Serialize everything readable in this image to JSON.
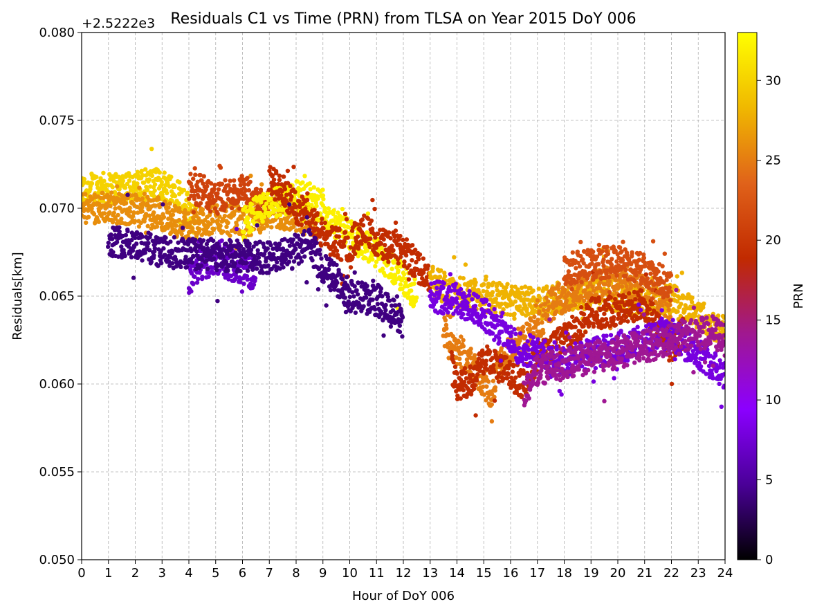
{
  "chart_data": {
    "type": "scatter",
    "title": "Residuals C1 vs Time (PRN) from TLSA on Year 2015 DoY 006",
    "xlabel": "Hour of DoY 006",
    "ylabel": "Residuals[km]",
    "offset_text": "+2.5222e3",
    "xlim": [
      0,
      24
    ],
    "ylim": [
      0.05,
      0.08
    ],
    "x_ticks": [
      "0",
      "1",
      "2",
      "3",
      "4",
      "5",
      "6",
      "7",
      "8",
      "9",
      "10",
      "11",
      "12",
      "13",
      "14",
      "15",
      "16",
      "17",
      "18",
      "19",
      "20",
      "21",
      "22",
      "23",
      "24"
    ],
    "y_ticks": [
      "0.050",
      "0.055",
      "0.060",
      "0.065",
      "0.070",
      "0.075",
      "0.080"
    ],
    "grid": true,
    "colorbar": {
      "label": "PRN",
      "range": [
        0,
        33
      ],
      "ticks": [
        "0",
        "5",
        "10",
        "15",
        "20",
        "25",
        "30"
      ],
      "colormap": "gnuplot",
      "stops": [
        "#000000",
        "#4a0098",
        "#8b00ff",
        "#a01890",
        "#c12a00",
        "#e0621a",
        "#f0b800",
        "#ffff00"
      ]
    },
    "series": [
      {
        "prn": 30,
        "segments": [
          [
            0,
            0.071
          ],
          [
            0.5,
            0.0712
          ],
          [
            1,
            0.0711
          ],
          [
            1.5,
            0.0713
          ],
          [
            2,
            0.0712
          ],
          [
            2.5,
            0.0714
          ],
          [
            3,
            0.0713
          ],
          [
            3.5,
            0.0711
          ],
          [
            4,
            0.07
          ],
          [
            4.3,
            0.069
          ]
        ]
      },
      {
        "prn": 26,
        "segments": [
          [
            0,
            0.07
          ],
          [
            1,
            0.0701
          ],
          [
            2,
            0.0699
          ],
          [
            3,
            0.0696
          ],
          [
            4,
            0.069
          ],
          [
            5,
            0.0695
          ],
          [
            6,
            0.0692
          ],
          [
            7,
            0.0697
          ],
          [
            8,
            0.0696
          ],
          [
            8.8,
            0.069
          ]
        ]
      },
      {
        "prn": 21,
        "segments": [
          [
            4,
            0.0712
          ],
          [
            4.5,
            0.071
          ],
          [
            5,
            0.0705
          ],
          [
            5.5,
            0.0708
          ],
          [
            6,
            0.071
          ],
          [
            6.5,
            0.0705
          ],
          [
            7,
            0.07
          ]
        ]
      },
      {
        "prn": 32,
        "segments": [
          [
            6,
            0.069
          ],
          [
            6.5,
            0.0698
          ],
          [
            7,
            0.0702
          ],
          [
            7.5,
            0.0705
          ],
          [
            8,
            0.0708
          ],
          [
            8.5,
            0.0706
          ],
          [
            9,
            0.07
          ],
          [
            9.5,
            0.069
          ],
          [
            10,
            0.0685
          ],
          [
            10.5,
            0.068
          ],
          [
            11,
            0.0675
          ],
          [
            11.5,
            0.0668
          ],
          [
            12,
            0.066
          ],
          [
            12.5,
            0.065
          ]
        ]
      },
      {
        "prn": 7,
        "segments": [
          [
            4,
            0.066
          ],
          [
            4.5,
            0.0668
          ],
          [
            5,
            0.0672
          ],
          [
            5.5,
            0.0668
          ],
          [
            6,
            0.0665
          ],
          [
            6.5,
            0.0662
          ]
        ]
      },
      {
        "prn": 19,
        "segments": [
          [
            7,
            0.0715
          ],
          [
            7.5,
            0.071
          ],
          [
            8,
            0.07
          ],
          [
            8.5,
            0.0695
          ],
          [
            9,
            0.0685
          ],
          [
            9.5,
            0.068
          ],
          [
            10,
            0.0678
          ],
          [
            10.5,
            0.069
          ],
          [
            11,
            0.068
          ],
          [
            11.5,
            0.0678
          ],
          [
            12,
            0.0675
          ],
          [
            12.5,
            0.0668
          ],
          [
            13,
            0.066
          ]
        ]
      },
      {
        "prn": 4,
        "segments": [
          [
            1,
            0.0682
          ],
          [
            2,
            0.068
          ],
          [
            3,
            0.0675
          ],
          [
            7,
            0.0672
          ],
          [
            8,
            0.0675
          ],
          [
            8.5,
            0.068
          ],
          [
            9,
            0.0665
          ],
          [
            9.5,
            0.066
          ],
          [
            10,
            0.065
          ],
          [
            11,
            0.0648
          ],
          [
            12,
            0.0635
          ]
        ]
      },
      {
        "prn": 28,
        "segments": [
          [
            13,
            0.066
          ],
          [
            13.5,
            0.0655
          ],
          [
            14,
            0.0652
          ],
          [
            15,
            0.065
          ],
          [
            16,
            0.0648
          ],
          [
            17,
            0.0645
          ],
          [
            18,
            0.065
          ],
          [
            19,
            0.0652
          ],
          [
            20,
            0.065
          ],
          [
            21,
            0.0645
          ],
          [
            22,
            0.0648
          ],
          [
            23,
            0.064
          ],
          [
            24,
            0.063
          ]
        ]
      },
      {
        "prn": 25,
        "segments": [
          [
            13.5,
            0.063
          ],
          [
            14,
            0.062
          ],
          [
            14.5,
            0.0612
          ],
          [
            15,
            0.06
          ],
          [
            15.3,
            0.0595
          ],
          [
            15.5,
            0.0608
          ],
          [
            16,
            0.062
          ],
          [
            17,
            0.0632
          ],
          [
            17.5,
            0.0645
          ],
          [
            18,
            0.065
          ],
          [
            19,
            0.0655
          ],
          [
            20,
            0.066
          ],
          [
            21,
            0.0655
          ],
          [
            22,
            0.064
          ]
        ]
      },
      {
        "prn": 19,
        "segments": [
          [
            13.8,
            0.061
          ],
          [
            14,
            0.06
          ],
          [
            14.5,
            0.0602
          ],
          [
            15,
            0.0615
          ],
          [
            16.5,
            0.06
          ],
          [
            17,
            0.0615
          ],
          [
            18,
            0.0625
          ],
          [
            19,
            0.064
          ],
          [
            20,
            0.0642
          ],
          [
            21,
            0.0645
          ],
          [
            22,
            0.062
          ],
          [
            22.5,
            0.063
          ]
        ]
      },
      {
        "prn": 8,
        "segments": [
          [
            13,
            0.065
          ],
          [
            14,
            0.0648
          ],
          [
            15,
            0.064
          ],
          [
            16,
            0.0625
          ],
          [
            16.5,
            0.0618
          ],
          [
            17,
            0.062
          ],
          [
            17.5,
            0.0612
          ],
          [
            22,
            0.0628
          ],
          [
            23,
            0.0618
          ],
          [
            23.5,
            0.0612
          ],
          [
            24,
            0.0605
          ]
        ]
      },
      {
        "prn": 14,
        "segments": [
          [
            16.5,
            0.0595
          ],
          [
            17,
            0.0608
          ],
          [
            23.5,
            0.063
          ],
          [
            24,
            0.0625
          ]
        ]
      },
      {
        "prn": 22,
        "segments": [
          [
            18,
            0.0665
          ],
          [
            19,
            0.0668
          ],
          [
            20,
            0.067
          ],
          [
            21,
            0.0665
          ],
          [
            22,
            0.0655
          ]
        ]
      }
    ]
  }
}
